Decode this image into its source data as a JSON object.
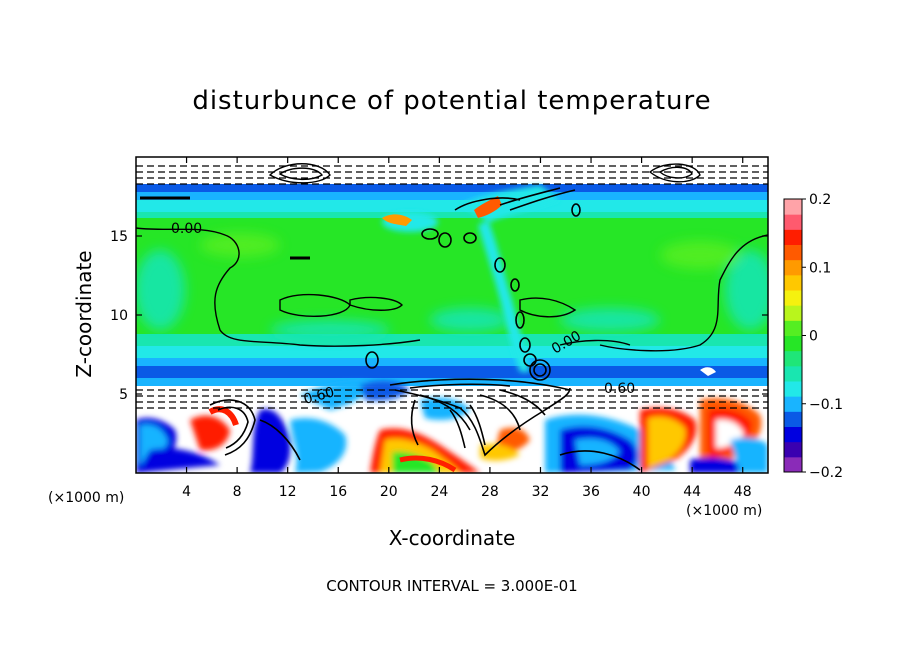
{
  "chart_data": {
    "type": "heatmap",
    "title": "disturbunce of potential temperature",
    "xlabel": "X-coordinate",
    "ylabel": "Z-coordinate",
    "x_unit": "(×1000 m)",
    "z_unit": "(×1000 m)",
    "xlim": [
      0,
      50
    ],
    "ylim": [
      0,
      20
    ],
    "x_ticks": [
      4,
      8,
      12,
      16,
      20,
      24,
      28,
      32,
      36,
      40,
      44,
      48
    ],
    "y_ticks": [
      5,
      10,
      15
    ],
    "colorbar": {
      "range": [
        -0.2,
        0.2
      ],
      "ticks": [
        "0.2",
        "0.1",
        "0",
        "−0.1",
        "−0.2"
      ],
      "colors": [
        "#8a2bb8",
        "#3a00b0",
        "#0000e0",
        "#0a5ae6",
        "#19b4ff",
        "#22e8e8",
        "#19e6b0",
        "#1fe678",
        "#26e626",
        "#55ee22",
        "#b9f51c",
        "#f5f10f",
        "#ffc800",
        "#ff9a00",
        "#ff5a00",
        "#ff1e00",
        "#ff5a6e",
        "#ffa3a8"
      ]
    },
    "contour_labels": [
      "0.00",
      "0.00",
      "0.60",
      "0.60"
    ],
    "contour_interval_text": "CONTOUR INTERVAL = 3.000E-01"
  }
}
